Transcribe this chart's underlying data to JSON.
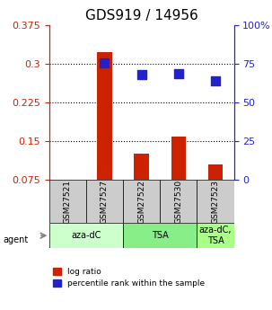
{
  "title": "GDS919 / 14956",
  "samples": [
    "GSM27521",
    "GSM27527",
    "GSM27522",
    "GSM27530",
    "GSM27523"
  ],
  "log_ratio": [
    0.0,
    0.322,
    0.125,
    0.158,
    0.105
  ],
  "percentile_rank": [
    null,
    0.755,
    0.68,
    0.685,
    0.64
  ],
  "agents": [
    {
      "label": "aza-dC",
      "start": 0,
      "end": 2,
      "color": "#ccffcc"
    },
    {
      "label": "TSA",
      "start": 2,
      "end": 4,
      "color": "#88ee88"
    },
    {
      "label": "aza-dC,\nTSA",
      "start": 4,
      "end": 5,
      "color": "#aaff88"
    }
  ],
  "ylim_left": [
    0.075,
    0.375
  ],
  "ylim_right": [
    0.0,
    1.0
  ],
  "yticks_left": [
    0.075,
    0.15,
    0.225,
    0.3,
    0.375
  ],
  "ytick_labels_left": [
    "0.075",
    "0.15",
    "0.225",
    "0.3",
    "0.375"
  ],
  "yticks_right": [
    0.0,
    0.25,
    0.5,
    0.75,
    1.0
  ],
  "ytick_labels_right": [
    "0",
    "25",
    "50",
    "75",
    "100%"
  ],
  "hlines": [
    0.15,
    0.225,
    0.3
  ],
  "bar_color": "#cc2200",
  "dot_color": "#2222cc",
  "bar_width": 0.4,
  "dot_size": 60,
  "agent_row_color_light": "#ccffcc",
  "agent_row_color_medium": "#88ee88",
  "agent_row_color_dark": "#aaff88",
  "sample_box_color": "#cccccc",
  "left_axis_color": "#cc2200",
  "right_axis_color": "#2222cc",
  "title_fontsize": 11,
  "tick_fontsize": 8,
  "label_fontsize": 8
}
